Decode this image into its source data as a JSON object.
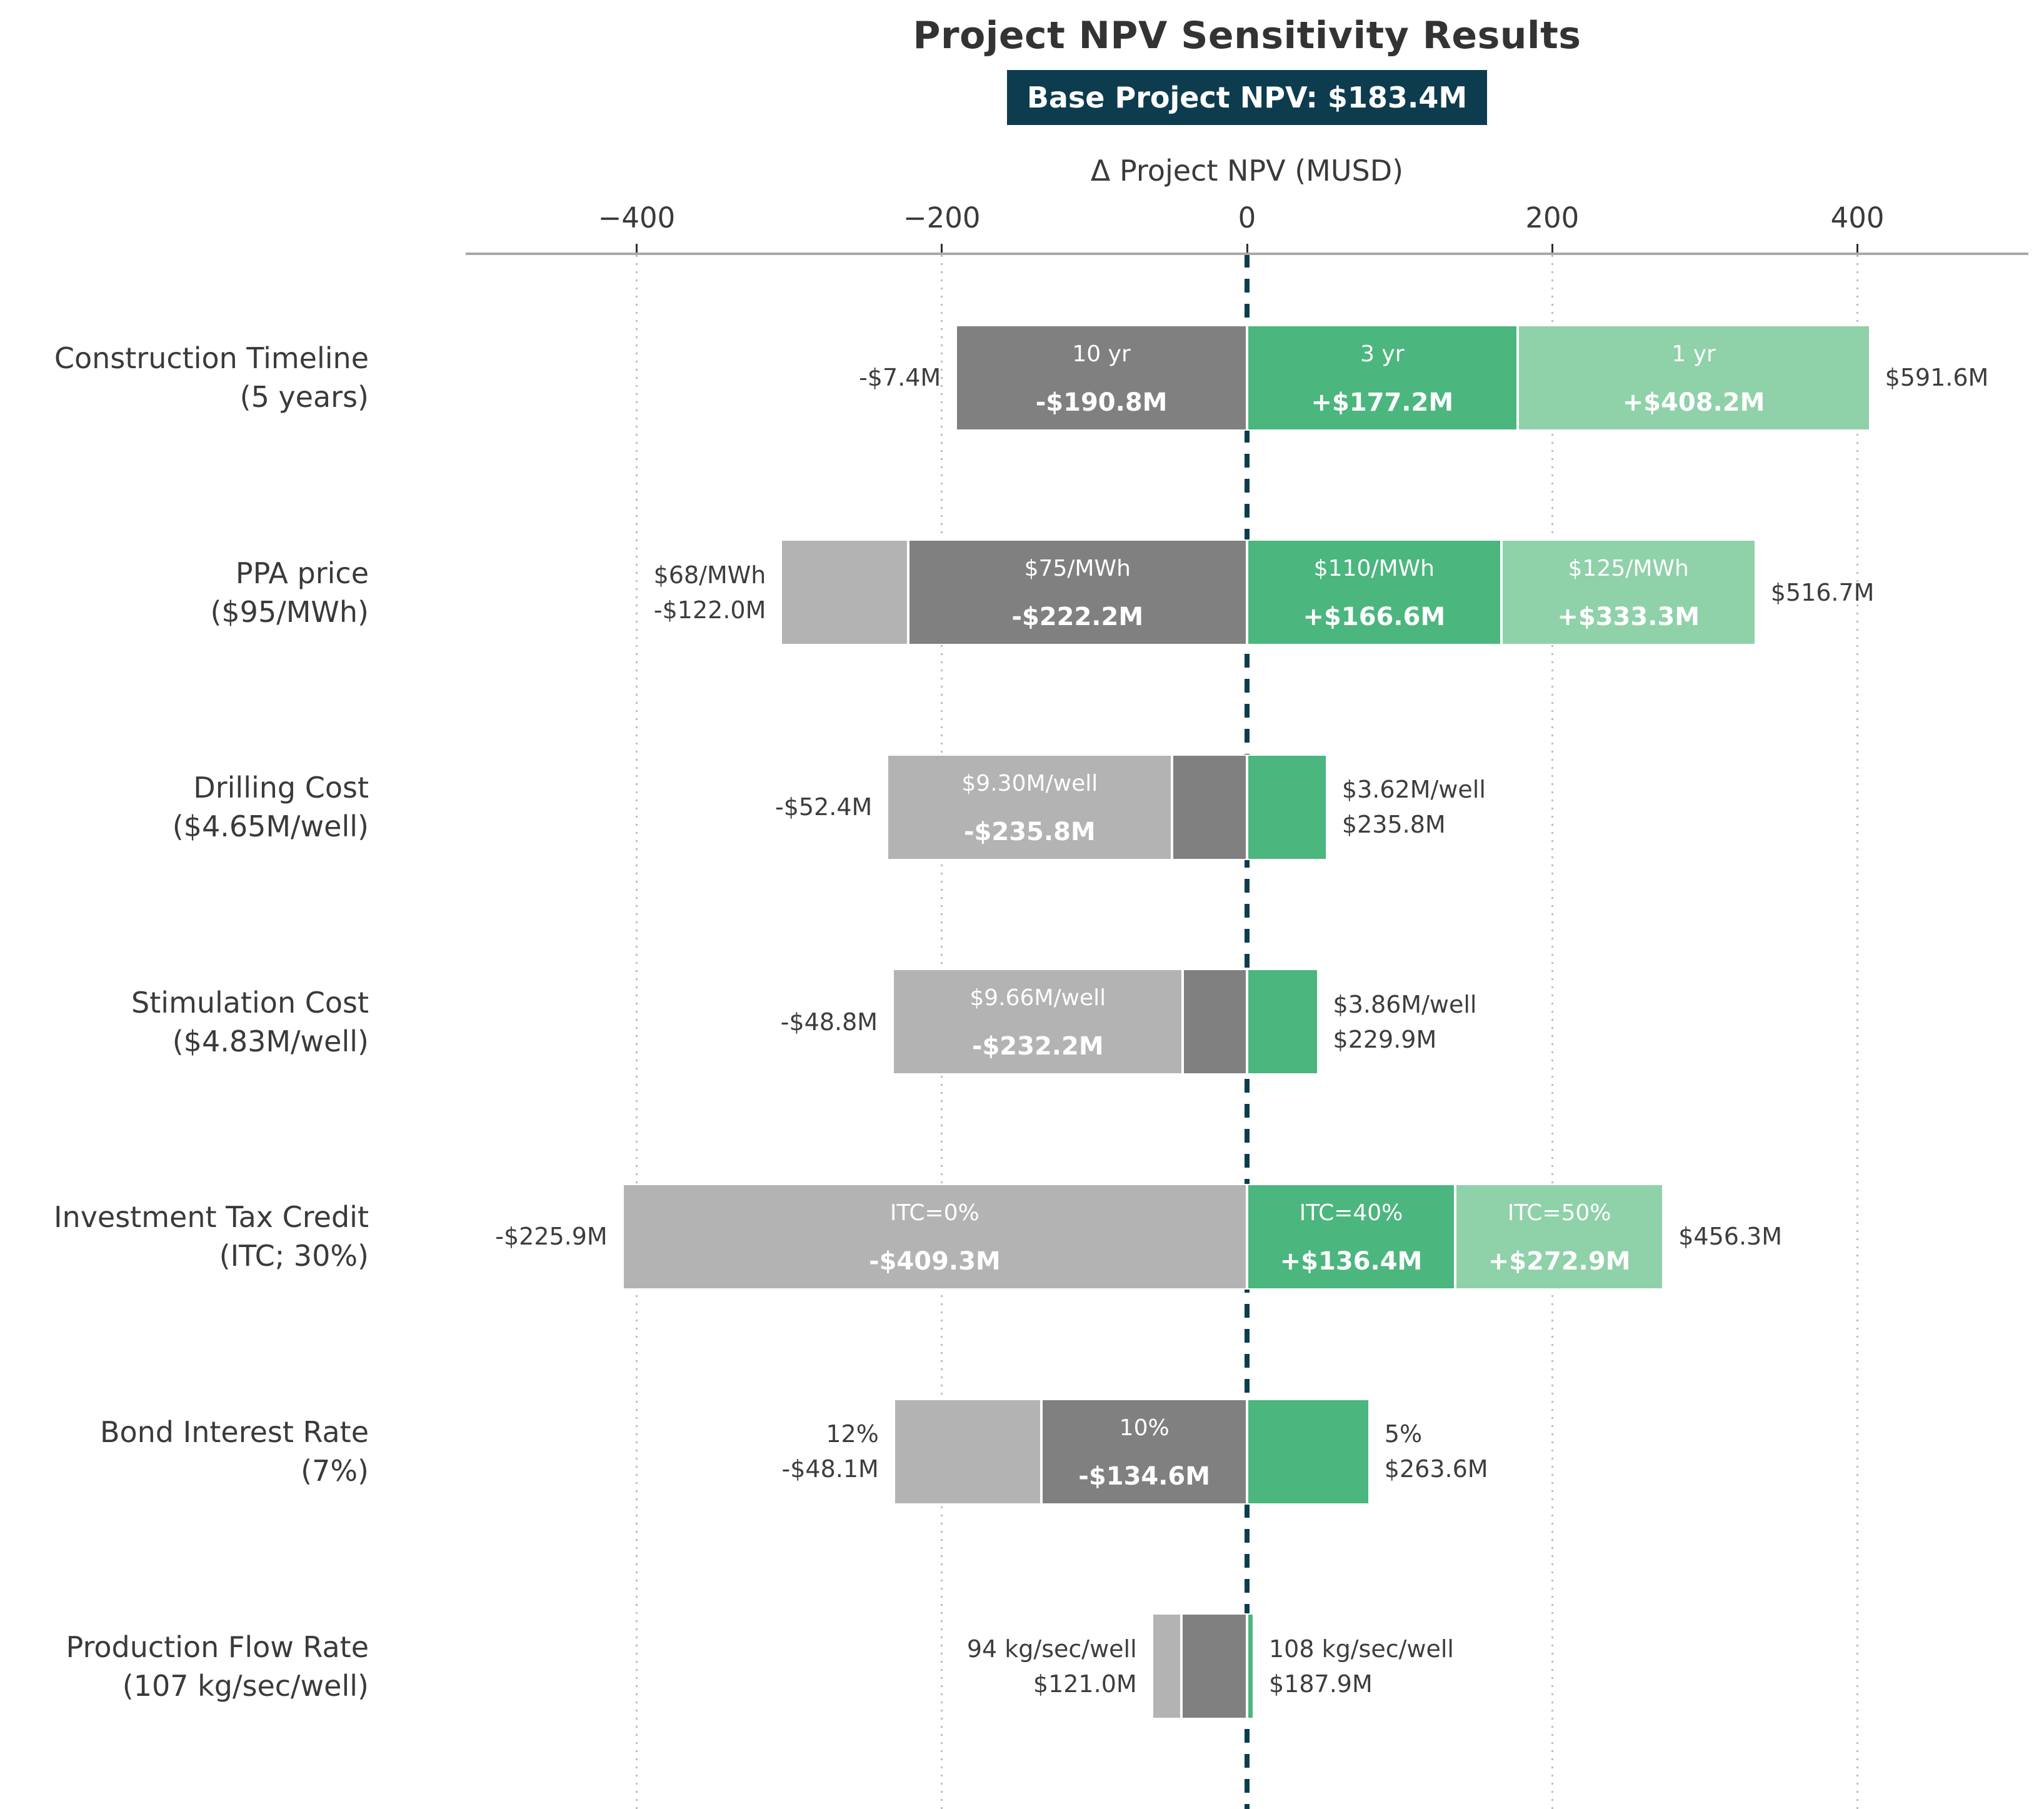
{
  "title": "Project NPV Sensitivity Results",
  "subtitle_badge": "Base Project NPV: $183.4M",
  "colors": {
    "dark_gray": "#808080",
    "light_gray": "#b3b3b3",
    "green": "#4bb67e",
    "light_green": "#8fd1a9",
    "zero_line": "#0d3c4e",
    "badge_bg": "#0d3c4e",
    "grid": "#bdbdbd",
    "axis_line": "#a9a9a9",
    "text": "#3a3a3a",
    "bar_text": "#ffffff"
  },
  "chart_data": {
    "type": "bar",
    "variant": "tornado-sensitivity",
    "title": "Project NPV Sensitivity Results",
    "base_label": "Base Project NPV: $183.4M",
    "base_npv_musd": 183.4,
    "xlabel": "Δ Project NPV (MUSD)",
    "xlim": [
      -512,
      512
    ],
    "grid": "vertical-dotted",
    "ticks": [
      {
        "value": -400,
        "label": "−400"
      },
      {
        "value": -200,
        "label": "−200"
      },
      {
        "value": 0,
        "label": "0"
      },
      {
        "value": 200,
        "label": "200"
      },
      {
        "value": 400,
        "label": "400"
      }
    ],
    "rows": [
      {
        "category": "Construction Timeline",
        "base_value": "(5 years)",
        "left_label": [
          "-$7.4M"
        ],
        "right_label": [
          "$591.6M"
        ],
        "segments": [
          {
            "color": "dark_gray",
            "from": -190.8,
            "to": 0,
            "label_top": "10 yr",
            "label_bottom": "-$190.8M"
          },
          {
            "color": "green",
            "from": 0,
            "to": 177.2,
            "label_top": "3 yr",
            "label_bottom": "+$177.2M"
          },
          {
            "color": "light_green",
            "from": 177.2,
            "to": 408.2,
            "label_top": "1 yr",
            "label_bottom": "+$408.2M"
          }
        ]
      },
      {
        "category": "PPA price",
        "base_value": "($95/MWh)",
        "left_label": [
          "$68/MWh",
          "-$122.0M"
        ],
        "right_label": [
          "$516.7M"
        ],
        "segments": [
          {
            "color": "light_gray",
            "from": -305.4,
            "to": -222.2
          },
          {
            "color": "dark_gray",
            "from": -222.2,
            "to": 0,
            "label_top": "$75/MWh",
            "label_bottom": "-$222.2M"
          },
          {
            "color": "green",
            "from": 0,
            "to": 166.6,
            "label_top": "$110/MWh",
            "label_bottom": "+$166.6M"
          },
          {
            "color": "light_green",
            "from": 166.6,
            "to": 333.3,
            "label_top": "$125/MWh",
            "label_bottom": "+$333.3M"
          }
        ]
      },
      {
        "category": "Drilling Cost",
        "base_value": "($4.65M/well)",
        "left_label": [
          "-$52.4M"
        ],
        "right_label": [
          "$3.62M/well",
          "$235.8M"
        ],
        "segments": [
          {
            "color": "light_gray",
            "from": -235.8,
            "to": -49,
            "label_top": "$9.30M/well",
            "label_bottom": "-$235.8M"
          },
          {
            "color": "dark_gray",
            "from": -49,
            "to": 0
          },
          {
            "color": "green",
            "from": 0,
            "to": 52.4
          }
        ]
      },
      {
        "category": "Stimulation Cost",
        "base_value": "($4.83M/well)",
        "left_label": [
          "-$48.8M"
        ],
        "right_label": [
          "$3.86M/well",
          "$229.9M"
        ],
        "segments": [
          {
            "color": "light_gray",
            "from": -232.2,
            "to": -42,
            "label_top": "$9.66M/well",
            "label_bottom": "-$232.2M"
          },
          {
            "color": "dark_gray",
            "from": -42,
            "to": 0
          },
          {
            "color": "green",
            "from": 0,
            "to": 46.5
          }
        ]
      },
      {
        "category": "Investment Tax Credit",
        "base_value": "(ITC; 30%)",
        "left_label": [
          "-$225.9M"
        ],
        "right_label": [
          "$456.3M"
        ],
        "segments": [
          {
            "color": "light_gray",
            "from": -409.3,
            "to": 0,
            "label_top": "ITC=0%",
            "label_bottom": "-$409.3M"
          },
          {
            "color": "green",
            "from": 0,
            "to": 136.4,
            "label_top": "ITC=40%",
            "label_bottom": "+$136.4M"
          },
          {
            "color": "light_green",
            "from": 136.4,
            "to": 272.9,
            "label_top": "ITC=50%",
            "label_bottom": "+$272.9M"
          }
        ]
      },
      {
        "category": "Bond Interest Rate",
        "base_value": "(7%)",
        "left_label": [
          "12%",
          "-$48.1M"
        ],
        "right_label": [
          "5%",
          "$263.6M"
        ],
        "segments": [
          {
            "color": "light_gray",
            "from": -231.5,
            "to": -134.6
          },
          {
            "color": "dark_gray",
            "from": -134.6,
            "to": 0,
            "label_top": "10%",
            "label_bottom": "-$134.6M"
          },
          {
            "color": "green",
            "from": 0,
            "to": 80.2
          }
        ]
      },
      {
        "category": "Production Flow Rate",
        "base_value": "(107 kg/sec/well)",
        "left_label": [
          "94 kg/sec/well",
          "$121.0M"
        ],
        "right_label": [
          "108 kg/sec/well",
          "$187.9M"
        ],
        "segments": [
          {
            "color": "light_gray",
            "from": -62.4,
            "to": -43
          },
          {
            "color": "dark_gray",
            "from": -43,
            "to": 0
          },
          {
            "color": "green",
            "from": 0,
            "to": 4.5
          }
        ]
      }
    ]
  }
}
